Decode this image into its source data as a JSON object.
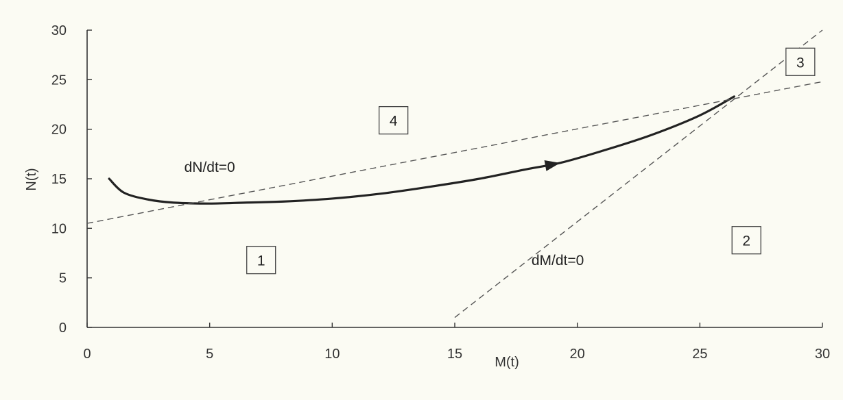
{
  "chart_data": {
    "type": "line",
    "xlabel": "M(t)",
    "ylabel": "N(t)",
    "xlim": [
      0,
      30
    ],
    "ylim": [
      0,
      30
    ],
    "xticks": [
      0,
      5,
      10,
      15,
      20,
      25,
      30
    ],
    "yticks": [
      0,
      5,
      10,
      15,
      20,
      25,
      30
    ],
    "grid": false,
    "series": [
      {
        "style": "solid-with-arrow",
        "x": [
          0.9,
          1.5,
          2.5,
          3.5,
          5.0,
          6.5,
          8.0,
          10.0,
          12.0,
          14.0,
          16.0,
          18.0,
          19.3,
          21.0,
          23.0,
          25.0,
          26.4
        ],
        "y": [
          15.0,
          13.6,
          12.9,
          12.6,
          12.5,
          12.6,
          12.7,
          13.0,
          13.5,
          14.2,
          15.0,
          16.0,
          16.6,
          17.8,
          19.4,
          21.4,
          23.3
        ]
      },
      {
        "name": "dN/dt=0",
        "style": "dashed",
        "x": [
          0,
          30
        ],
        "y": [
          10.5,
          24.8
        ]
      },
      {
        "name": "dM/dt=0",
        "style": "dashed",
        "x": [
          15,
          30
        ],
        "y": [
          1.0,
          30.0
        ]
      }
    ],
    "annotations": [
      {
        "text": "dN/dt=0",
        "x": 5.0,
        "y": 15.7
      },
      {
        "text": "dM/dt=0",
        "x": 19.2,
        "y": 6.3
      }
    ],
    "regions": [
      {
        "label": "1",
        "x": 7.1,
        "y": 6.8
      },
      {
        "label": "2",
        "x": 26.9,
        "y": 8.8
      },
      {
        "label": "3",
        "x": 29.1,
        "y": 26.8
      },
      {
        "label": "4",
        "x": 12.5,
        "y": 20.9
      }
    ]
  }
}
